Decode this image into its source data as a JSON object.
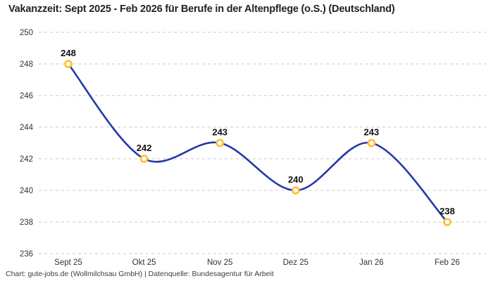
{
  "title": "Vakanzzeit: Sept 2025 - Feb 2026 für Berufe in der Altenpflege (o.S.) (Deutschland)",
  "footer": "Chart: gute-jobs.de (Wollmilchsau GmbH) | Datenquelle: Bundesagentur für Arbeit",
  "colors": {
    "line": "#2438a8",
    "marker_stroke": "#fdbf2d",
    "marker_fill": "#ffffff",
    "grid": "#c9c9c9",
    "axis_text": "#333333",
    "value_label_text": "#111111"
  },
  "chart_data": {
    "type": "line",
    "title": "Vakanzzeit: Sept 2025 - Feb 2026 für Berufe in der Altenpflege (o.S.) (Deutschland)",
    "categories": [
      "Sept 25",
      "Okt 25",
      "Nov 25",
      "Dez 25",
      "Jan 26",
      "Feb 26"
    ],
    "values": [
      248,
      242,
      243,
      240,
      243,
      238
    ],
    "xlabel": "",
    "ylabel": "",
    "ylim": [
      236,
      250
    ],
    "ytick_step": 2,
    "yticks": [
      236,
      238,
      240,
      242,
      244,
      246,
      248,
      250
    ],
    "grid": "horizontal-dashed",
    "legend": "none",
    "smooth": true,
    "point_labels_visible": true
  }
}
